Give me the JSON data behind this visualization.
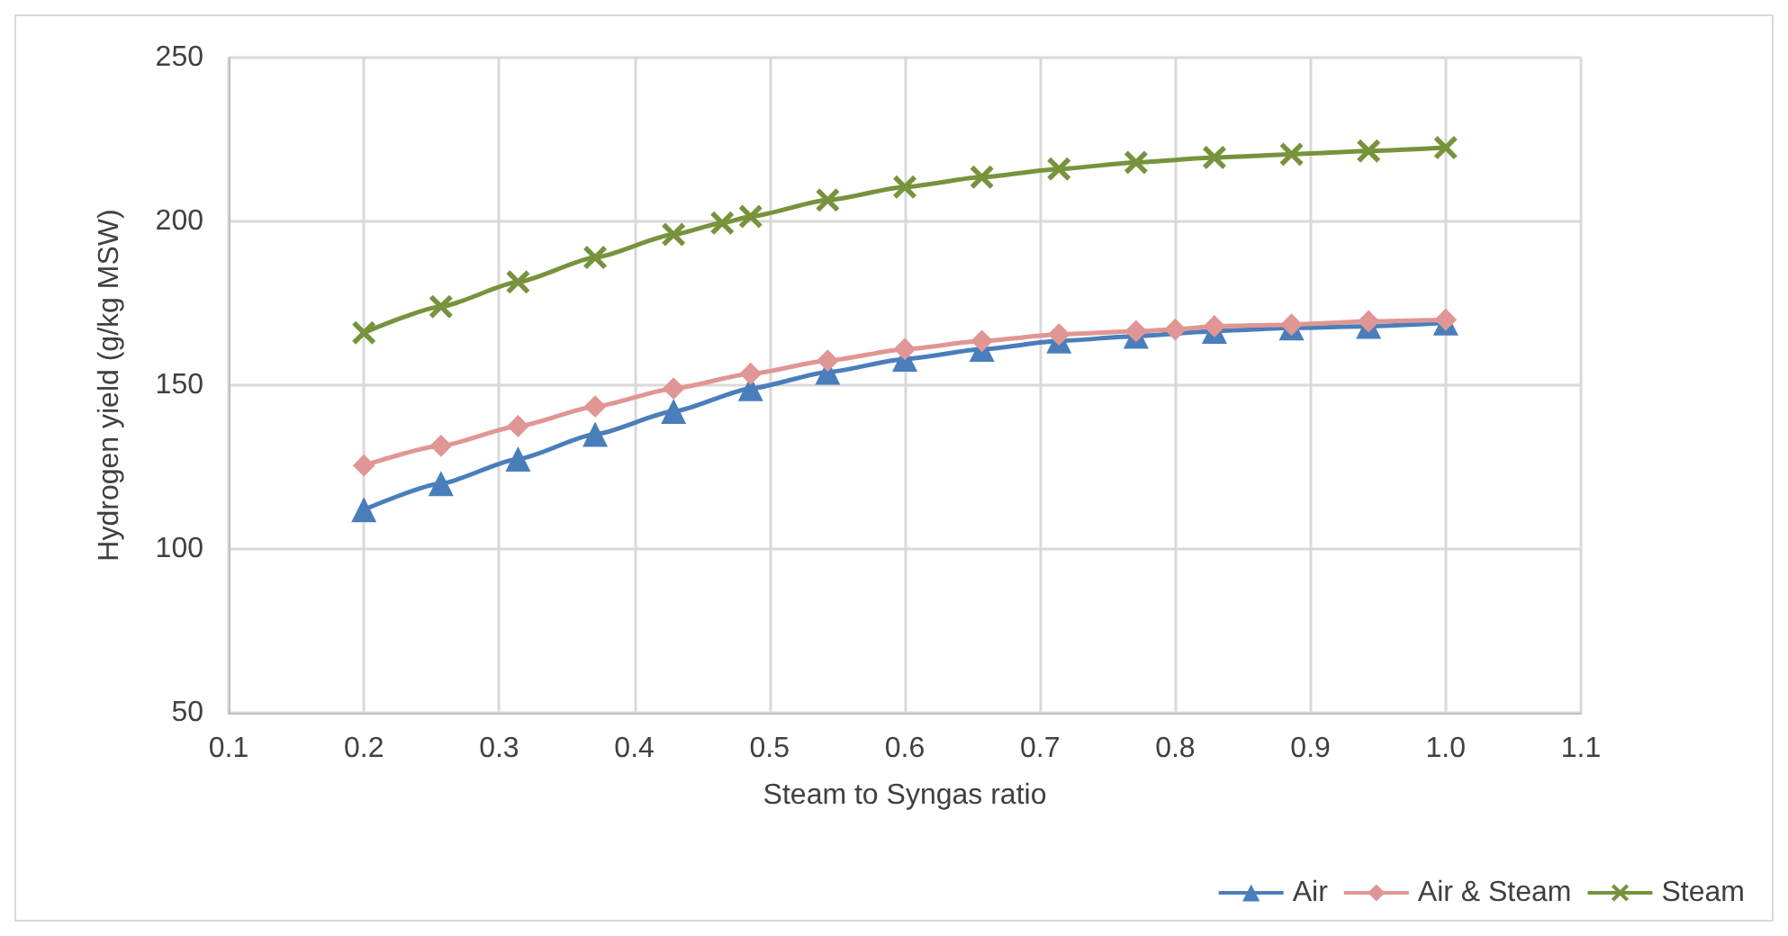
{
  "chart_data": {
    "type": "line",
    "xlabel": "Steam to Syngas ratio",
    "ylabel": "Hydrogen yield (g/kg MSW)",
    "xlim": [
      0.1,
      1.1
    ],
    "xticks": [
      0.1,
      0.2,
      0.3,
      0.4,
      0.5,
      0.6,
      0.7,
      0.8,
      0.9,
      {
        "value": 1,
        "label": "1.0"
      },
      1.1
    ],
    "ylim": [
      50,
      250
    ],
    "yticks": [
      50,
      100,
      150,
      200,
      250
    ],
    "grid": true,
    "legend": "bottom right",
    "series": [
      {
        "name": "Air",
        "color": "#4a7ebb",
        "marker": "triangle",
        "x": [
          0.2,
          0.257,
          0.314,
          0.371,
          0.429,
          0.486,
          0.543,
          0.6,
          0.657,
          0.714,
          0.771,
          0.829,
          0.886,
          0.943,
          1.0
        ],
        "values": [
          112,
          120,
          127.5,
          135,
          142,
          149,
          154,
          158,
          161,
          163.5,
          165,
          166.5,
          167.5,
          168,
          169
        ]
      },
      {
        "name": "Air & Steam",
        "color": "#e09694",
        "marker": "diamond",
        "x": [
          0.2,
          0.257,
          0.314,
          0.371,
          0.429,
          0.486,
          0.543,
          0.6,
          0.657,
          0.714,
          0.771,
          0.8,
          0.829,
          0.886,
          0.943,
          1.0
        ],
        "values": [
          125.5,
          131.5,
          137.5,
          143.5,
          149,
          153.5,
          157.5,
          161,
          163.5,
          165.5,
          166.5,
          167,
          168,
          168.5,
          169.5,
          170
        ]
      },
      {
        "name": "Steam",
        "color": "#77933c",
        "marker": "cross",
        "x": [
          0.2,
          0.257,
          0.314,
          0.371,
          0.429,
          0.465,
          0.486,
          0.543,
          0.6,
          0.657,
          0.714,
          0.771,
          0.829,
          0.886,
          0.943,
          1.0
        ],
        "values": [
          166,
          174,
          181.5,
          189,
          196,
          199.5,
          201.5,
          206.5,
          210.5,
          213.5,
          216,
          218,
          219.5,
          220.5,
          221.5,
          222.5
        ]
      }
    ]
  }
}
